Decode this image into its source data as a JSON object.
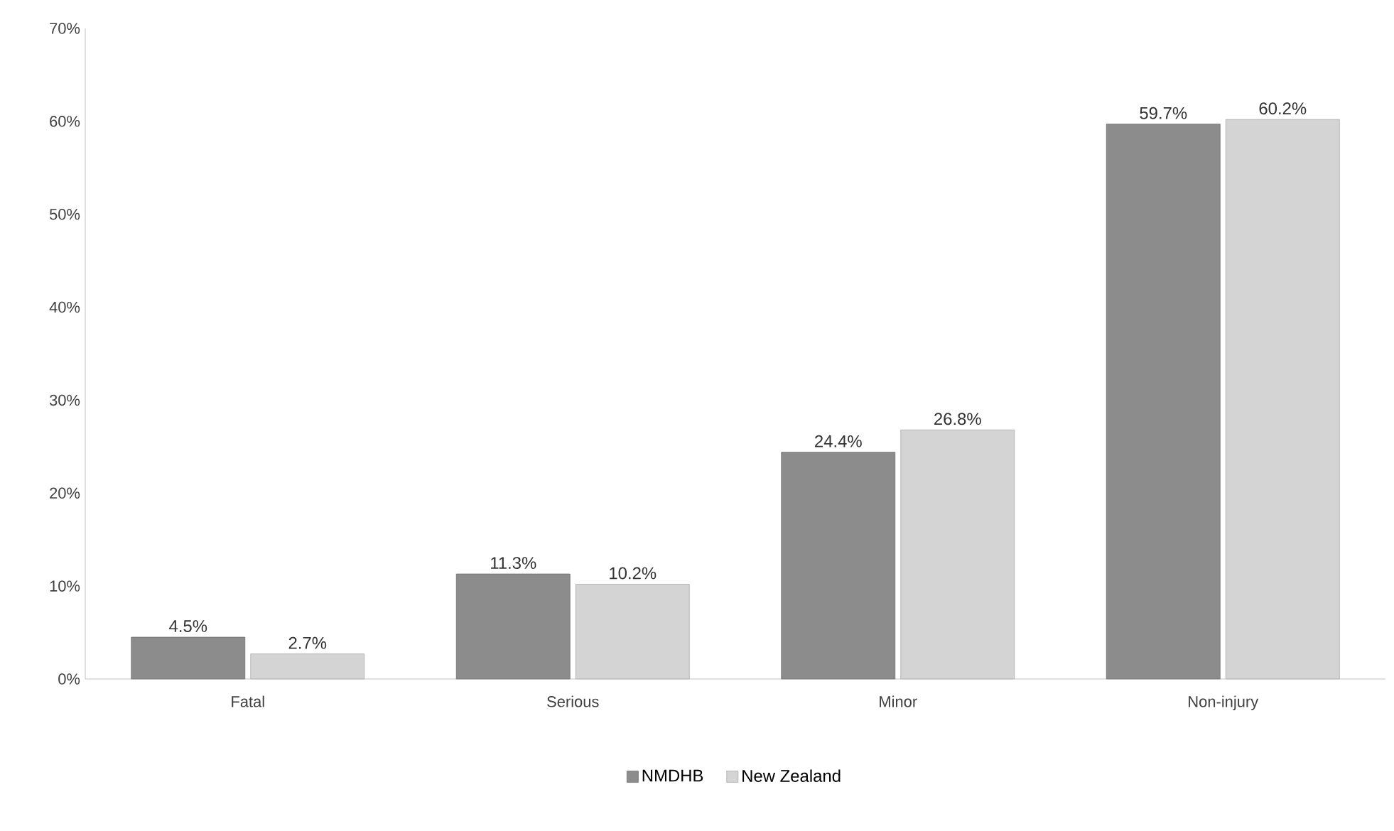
{
  "chart_data": {
    "type": "bar",
    "categories": [
      "Fatal",
      "Serious",
      "Minor",
      "Non-injury"
    ],
    "series": [
      {
        "name": "NMDHB",
        "color": "#8c8c8c",
        "values": [
          4.5,
          11.3,
          24.4,
          59.7
        ]
      },
      {
        "name": "New Zealand",
        "color": "#d4d4d4",
        "values": [
          2.7,
          10.2,
          26.8,
          60.2
        ]
      }
    ],
    "ylim": [
      0,
      70
    ],
    "yticks": [
      {
        "value": 0,
        "label": "0%"
      },
      {
        "value": 10,
        "label": "10%"
      },
      {
        "value": 20,
        "label": "20%"
      },
      {
        "value": 30,
        "label": "30%"
      },
      {
        "value": 40,
        "label": "40%"
      },
      {
        "value": 50,
        "label": "50%"
      },
      {
        "value": 60,
        "label": "60%"
      },
      {
        "value": 70,
        "label": "70%"
      }
    ],
    "value_labels": [
      [
        "4.5%",
        "11.3%",
        "24.4%",
        "59.7%"
      ],
      [
        "2.7%",
        "10.2%",
        "26.8%",
        "60.2%"
      ]
    ],
    "legend": "bottom",
    "grid": false
  }
}
